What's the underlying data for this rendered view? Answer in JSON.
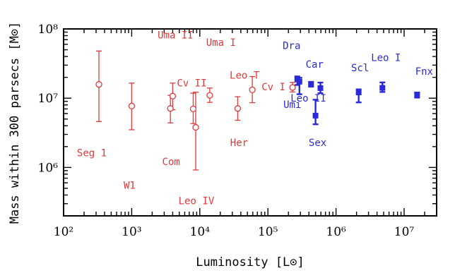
{
  "chart_data": {
    "type": "scatter",
    "xlabel": "Luminosity [L⊙]",
    "ylabel": "Mass within 300 parsecs [M⊙]",
    "xscale": "log",
    "yscale": "log",
    "xlim": [
      100,
      30000000
    ],
    "ylim": [
      200000,
      100000000
    ],
    "x_ticks": [
      {
        "value": 100,
        "label": "10²"
      },
      {
        "value": 1000,
        "label": "10³"
      },
      {
        "value": 10000,
        "label": "10⁴"
      },
      {
        "value": 100000,
        "label": "10⁵"
      },
      {
        "value": 1000000,
        "label": "10⁶"
      },
      {
        "value": 10000000,
        "label": "10⁷"
      }
    ],
    "y_ticks": [
      {
        "value": 1000000,
        "label": "10⁶"
      },
      {
        "value": 10000000,
        "label": "10⁷"
      },
      {
        "value": 100000000,
        "label": "10⁸"
      }
    ],
    "grid": false,
    "series": [
      {
        "marker": "open-circle",
        "color": "#e03a3a",
        "points": [
          {
            "label": "Seg 1",
            "x": 330,
            "y": 15800000,
            "y_lo": 4600000,
            "y_hi": 48000000
          },
          {
            "label": "W1",
            "x": 1000,
            "y": 7700000,
            "y_lo": 3500000,
            "y_hi": 16500000
          },
          {
            "label": "Com",
            "x": 3700,
            "y": 7100000,
            "y_lo": 4400000,
            "y_hi": 11000000
          },
          {
            "label": "Uma II",
            "x": 4000,
            "y": 10700000,
            "y_lo": 6800000,
            "y_hi": 16500000
          },
          {
            "label": "Cv II",
            "x": 8000,
            "y": 7000000,
            "y_lo": 4300000,
            "y_hi": 11800000
          },
          {
            "label": "Leo IV",
            "x": 8700,
            "y": 3800000,
            "y_lo": 920000,
            "y_hi": 12200000
          },
          {
            "label": "Uma I",
            "x": 14000,
            "y": 11000000,
            "y_lo": 8700000,
            "y_hi": 14000000
          },
          {
            "label": "Her",
            "x": 36000,
            "y": 7100000,
            "y_lo": 4800000,
            "y_hi": 10500000
          },
          {
            "label": "Leo T",
            "x": 59000,
            "y": 13200000,
            "y_lo": 8600000,
            "y_hi": 20500000
          },
          {
            "label": "Cv I",
            "x": 230000,
            "y": 14300000,
            "y_lo": 12300000,
            "y_hi": 16900000
          }
        ]
      },
      {
        "marker": "filled-square",
        "color": "#2a2ad8",
        "points": [
          {
            "label": "Dra",
            "x": 270000,
            "y": 18700000,
            "y_lo": 15500000,
            "y_hi": 20600000
          },
          {
            "label": "Umi",
            "x": 290000,
            "y": 17300000,
            "y_lo": 11400000,
            "y_hi": 19700000
          },
          {
            "label": "Car",
            "x": 430000,
            "y": 15700000,
            "y_lo": 14800000,
            "y_hi": 17200000
          },
          {
            "label": "Sex",
            "x": 500000,
            "y": 5600000,
            "y_lo": 4200000,
            "y_hi": 9500000
          },
          {
            "label": "Leo II",
            "x": 590000,
            "y": 14000000,
            "y_lo": 11800000,
            "y_hi": 16800000
          },
          {
            "label": "Scl",
            "x": 2150000,
            "y": 12100000,
            "y_lo": 8700000,
            "y_hi": 13400000
          },
          {
            "label": "Leo I",
            "x": 4800000,
            "y": 14100000,
            "y_lo": 12300000,
            "y_hi": 16900000
          },
          {
            "label": "Fnx",
            "x": 15500000,
            "y": 11300000,
            "y_lo": 10200000,
            "y_hi": 12000000
          }
        ]
      }
    ]
  }
}
